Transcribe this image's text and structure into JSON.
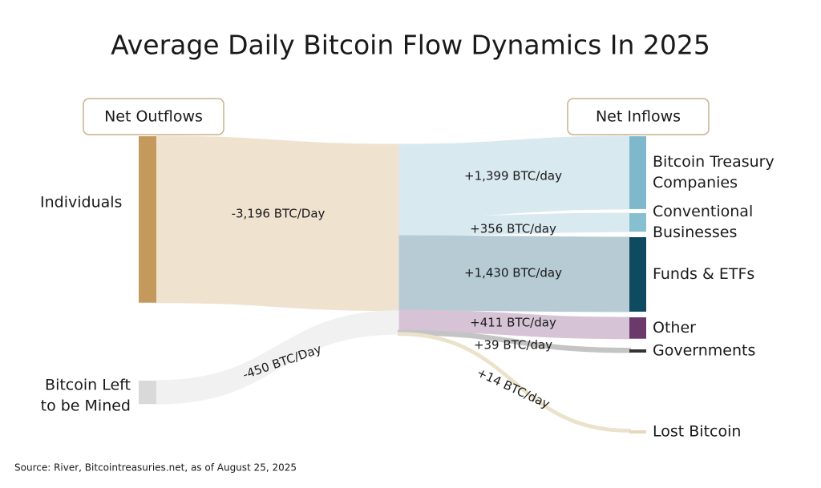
{
  "chart_data": {
    "type": "sankey",
    "title": "Average Daily Bitcoin Flow Dynamics In 2025",
    "source_note": "Source: River, Bitcointreasuries.net, as of August 25, 2025",
    "left_header": "Net Outflows",
    "right_header": "Net Inflows",
    "sources": {
      "names": [
        [
          "Individuals"
        ],
        [
          "Bitcoin Left",
          "to be Mined"
        ]
      ],
      "values": [
        -3196,
        -450
      ],
      "value_labels": [
        "-3,196 BTC/Day",
        "-450 BTC/Day"
      ],
      "colors": [
        "#c49a5c",
        "#d9d9d9"
      ],
      "flow_colors": [
        "#efe3d0",
        "#f1f1f1"
      ]
    },
    "targets": {
      "names": [
        [
          "Bitcoin Treasury",
          "Companies"
        ],
        [
          "Conventional",
          "Businesses"
        ],
        [
          "Funds & ETFs"
        ],
        [
          "Other"
        ],
        [
          "Governments"
        ],
        [
          "Lost Bitcoin"
        ]
      ],
      "values": [
        1399,
        356,
        1430,
        411,
        39,
        14
      ],
      "value_labels": [
        "+1,399 BTC/day",
        "+356 BTC/day",
        "+1,430 BTC/day",
        "+411 BTC/day",
        "+39 BTC/day",
        "+14 BTC/day"
      ],
      "colors": [
        "#7fb8cc",
        "#86bfd0",
        "#0e4a60",
        "#6b3a6b",
        "#333333",
        "#e6d8b8"
      ],
      "flow_colors": [
        "#d8e9f0",
        "#d8e9f0",
        "#b6cbd4",
        "#d6c4d6",
        "#c4c4c4",
        "#ece2cb"
      ]
    }
  }
}
